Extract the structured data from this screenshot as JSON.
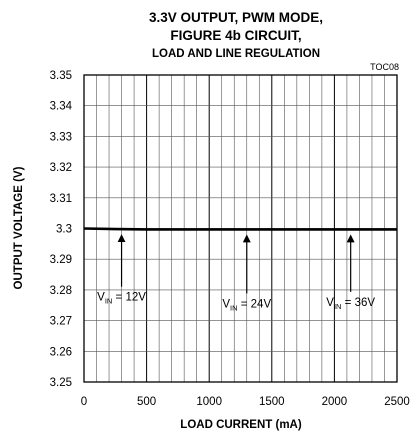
{
  "chart_data": {
    "type": "line",
    "title_lines": [
      "3.3V OUTPUT, PWM MODE,",
      "FIGURE 4b CIRCUIT,"
    ],
    "subtitle": "LOAD AND LINE REGULATION",
    "figure_code": "TOC08",
    "xlabel": "LOAD CURRENT (mA)",
    "ylabel": "OUTPUT VOLTAGE (V)",
    "xlim": [
      0,
      2500
    ],
    "ylim": [
      3.25,
      3.35
    ],
    "x_ticks": [
      "0",
      "500",
      "1000",
      "1500",
      "2000",
      "2500"
    ],
    "y_ticks": [
      "3.35",
      "3.34",
      "3.33",
      "3.32",
      "3.31",
      "3.3",
      "3.29",
      "3.28",
      "3.27",
      "3.26",
      "3.25"
    ],
    "grid": true,
    "series": [
      {
        "x": [
          0,
          250,
          500,
          750,
          1000,
          1250,
          1500,
          1750,
          2000,
          2250,
          2500
        ],
        "y": [
          3.3,
          3.2998,
          3.2997,
          3.2997,
          3.2997,
          3.2997,
          3.2997,
          3.2997,
          3.2997,
          3.2997,
          3.2997
        ]
      }
    ],
    "annotations": [
      {
        "prefix": "V",
        "sub": "IN",
        "value": " = 12V",
        "x": 300,
        "label_y": 3.2765
      },
      {
        "prefix": "V",
        "sub": "IN",
        "value": " = 24V",
        "x": 1300,
        "label_y": 3.2743
      },
      {
        "prefix": "V",
        "sub": "IN",
        "value": " = 36V",
        "x": 2130,
        "label_y": 3.2748
      }
    ]
  }
}
